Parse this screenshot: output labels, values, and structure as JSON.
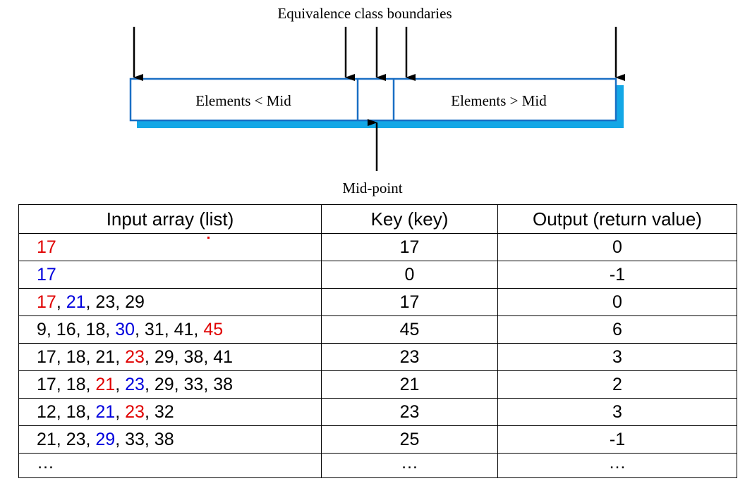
{
  "diagram": {
    "title": "Equivalence class boundaries",
    "left_partition_label": "Elements < Mid",
    "right_partition_label": "Elements > Mid",
    "midpoint_label": "Mid-point",
    "colors": {
      "box_border": "#1a6fc4",
      "box_shadow": "#13a7e6",
      "arrow": "#000000"
    }
  },
  "table": {
    "headers": [
      "Input array (list)",
      "Key (key)",
      "Output (return value)"
    ],
    "rows": [
      {
        "input": [
          {
            "text": "17",
            "color": "red"
          }
        ],
        "key": "17",
        "output": "0"
      },
      {
        "input": [
          {
            "text": "17",
            "color": "blue"
          }
        ],
        "key": "0",
        "output": "-1"
      },
      {
        "input": [
          {
            "text": "17",
            "color": "red"
          },
          {
            "text": ", ",
            "color": "black"
          },
          {
            "text": "21",
            "color": "blue"
          },
          {
            "text": ", 23, 29",
            "color": "black"
          }
        ],
        "key": "17",
        "output": "0"
      },
      {
        "input": [
          {
            "text": "9, 16, 18, ",
            "color": "black"
          },
          {
            "text": "30",
            "color": "blue"
          },
          {
            "text": ", 31, 41, ",
            "color": "black"
          },
          {
            "text": "45",
            "color": "red"
          }
        ],
        "key": "45",
        "output": "6"
      },
      {
        "input": [
          {
            "text": "17, 18, 21, ",
            "color": "black"
          },
          {
            "text": "23",
            "color": "red"
          },
          {
            "text": ", 29, 38, 41",
            "color": "black"
          }
        ],
        "key": "23",
        "output": "3"
      },
      {
        "input": [
          {
            "text": "17, 18, ",
            "color": "black"
          },
          {
            "text": "21",
            "color": "red"
          },
          {
            "text": ", ",
            "color": "black"
          },
          {
            "text": "23",
            "color": "blue"
          },
          {
            "text": ", 29, 33, 38",
            "color": "black"
          }
        ],
        "key": "21",
        "output": "2"
      },
      {
        "input": [
          {
            "text": "12, 18, ",
            "color": "black"
          },
          {
            "text": "21",
            "color": "blue"
          },
          {
            "text": ", ",
            "color": "black"
          },
          {
            "text": "23",
            "color": "red"
          },
          {
            "text": ", 32",
            "color": "black"
          }
        ],
        "key": "23",
        "output": "3"
      },
      {
        "input": [
          {
            "text": "21, 23, ",
            "color": "black"
          },
          {
            "text": "29",
            "color": "blue"
          },
          {
            "text": ", 33, 38",
            "color": "black"
          }
        ],
        "key": "25",
        "output": "-1"
      },
      {
        "input": [
          {
            "text": "…",
            "color": "black"
          }
        ],
        "key": "…",
        "output": "…"
      }
    ]
  }
}
